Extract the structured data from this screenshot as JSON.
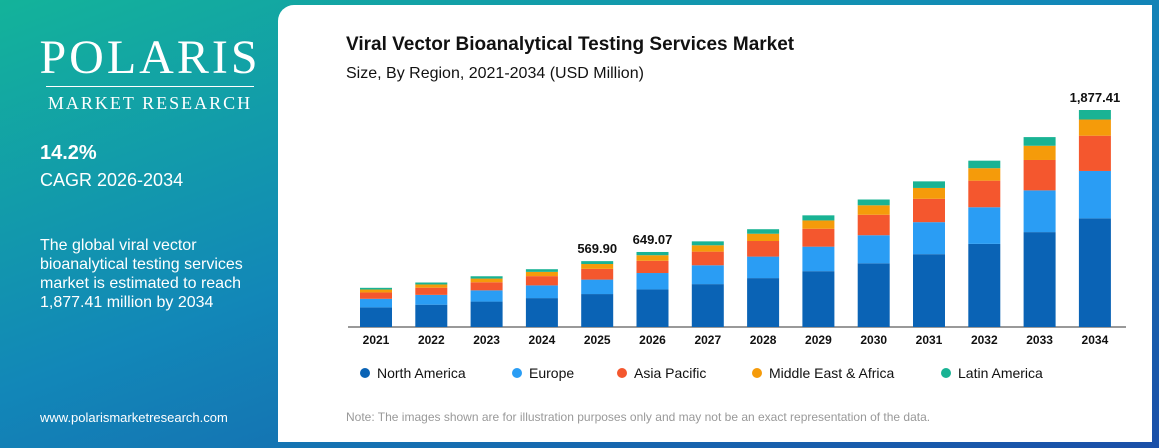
{
  "brand": {
    "name": "POLARIS",
    "tagline": "MARKET RESEARCH"
  },
  "sidebar": {
    "stat": "14.2%",
    "stat_label": "CAGR 2026-2034",
    "description": "The global viral vector bioanalytical testing services market is estimated to reach 1,877.41 million by 2034",
    "website": "www.polarismarketresearch.com"
  },
  "chart_data": {
    "type": "stacked-bar",
    "title": "Viral Vector Bioanalytical Testing Services Market",
    "subtitle": "Size, By Region, 2021-2034 (USD Million)",
    "note": "Note: The images shown are for illustration purposes only and may not be an exact representation of the data.",
    "categories": [
      "2021",
      "2022",
      "2023",
      "2024",
      "2025",
      "2026",
      "2027",
      "2028",
      "2029",
      "2030",
      "2031",
      "2032",
      "2033",
      "2034"
    ],
    "series": [
      {
        "name": "North America",
        "color": "#0a63b5",
        "values": [
          170,
          193,
          220,
          250,
          285,
          325,
          371,
          423,
          483,
          551,
          630,
          719,
          821,
          940
        ]
      },
      {
        "name": "Europe",
        "color": "#2a9df4",
        "values": [
          74,
          85,
          97,
          110,
          125,
          142,
          163,
          186,
          212,
          243,
          277,
          317,
          361,
          410
        ]
      },
      {
        "name": "Asia Pacific",
        "color": "#f4572e",
        "values": [
          55,
          62,
          70,
          80,
          93,
          106,
          118,
          135,
          155,
          177,
          202,
          230,
          263,
          305
        ]
      },
      {
        "name": "Middle East & Africa",
        "color": "#f59b0a",
        "values": [
          25,
          28,
          32,
          37,
          42,
          48,
          55,
          63,
          72,
          82,
          94,
          108,
          123,
          140
        ]
      },
      {
        "name": "Latin America",
        "color": "#19b394",
        "values": [
          15,
          17,
          20,
          23,
          24.9,
          28.07,
          34,
          39,
          44,
          50,
          57,
          65,
          75,
          82.41
        ]
      }
    ],
    "totals": [
      null,
      null,
      null,
      null,
      569.9,
      649.07,
      null,
      null,
      null,
      null,
      null,
      null,
      null,
      1877.41
    ],
    "total_labels": [
      null,
      null,
      null,
      null,
      "569.90",
      "649.07",
      null,
      null,
      null,
      null,
      null,
      null,
      null,
      "1,877.41"
    ],
    "legend": "bottom"
  }
}
